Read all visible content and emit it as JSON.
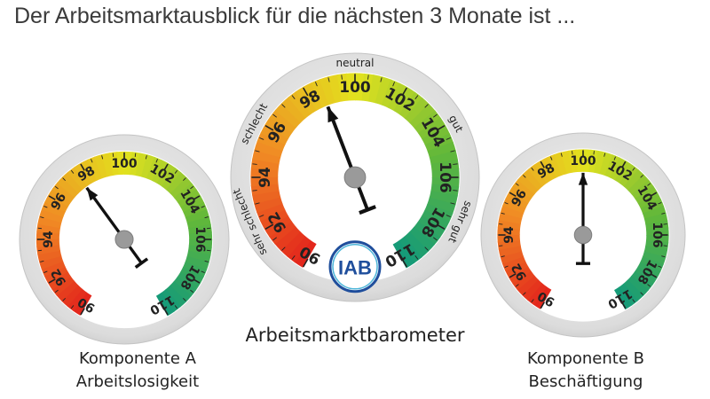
{
  "headline": "Der Arbeitsmarktausblick für die nächsten 3 Monate ist ...",
  "logo_text": "IAB",
  "colors": {
    "red": "#e3241c",
    "orange": "#f08a24",
    "yellow": "#e3e21e",
    "green": "#62b83a",
    "teal": "#139a7a",
    "needle": "#111111",
    "hub": "#9a9a9a",
    "ring": "#d9d9d9"
  },
  "chart_data": [
    {
      "type": "gauge",
      "id": "main",
      "title": "Arbeitsmarktbarometer",
      "value": 98.6,
      "min": 90,
      "max": 110,
      "ticks": [
        "90",
        "92",
        "94",
        "96",
        "98",
        "100",
        "102",
        "104",
        "106",
        "108",
        "110"
      ],
      "ratings": [
        "sehr schlecht",
        "schlecht",
        "neutral",
        "gut",
        "sehr gut"
      ]
    },
    {
      "type": "gauge",
      "id": "a",
      "title": "Komponente A",
      "subtitle": "Arbeitslosigkeit",
      "value": 97.6,
      "min": 90,
      "max": 110,
      "ticks": [
        "90",
        "92",
        "94",
        "96",
        "98",
        "100",
        "102",
        "104",
        "106",
        "108",
        "110"
      ]
    },
    {
      "type": "gauge",
      "id": "b",
      "title": "Komponente B",
      "subtitle": "Beschäftigung",
      "value": 100.0,
      "min": 90,
      "max": 110,
      "ticks": [
        "90",
        "92",
        "94",
        "96",
        "98",
        "100",
        "102",
        "104",
        "106",
        "108",
        "110"
      ]
    }
  ]
}
